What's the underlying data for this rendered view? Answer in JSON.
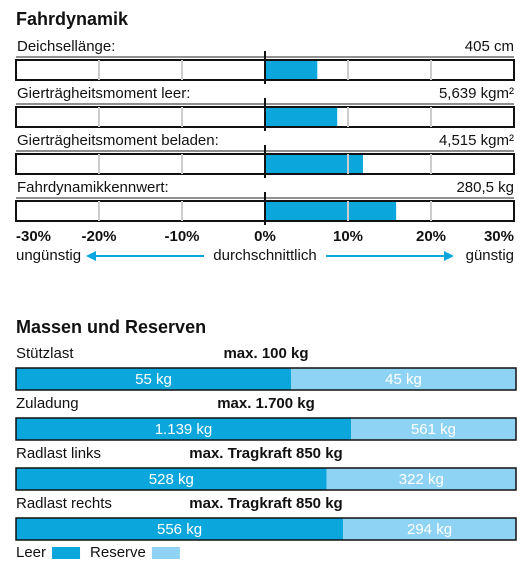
{
  "chart_data": [
    {
      "type": "bar",
      "orientation": "horizontal",
      "title": "Fahrdynamik",
      "categories": [
        "Deichsellänge:",
        "Gierträgheitsmoment leer:",
        "Gierträgheitsmoment beladen:",
        "Fahrdynamikkennwert:"
      ],
      "measurements": [
        "405 cm",
        "5,639 kgm²",
        "4,515 kgm²",
        "280,5 kg"
      ],
      "values": [
        6.3,
        8.7,
        11.8,
        15.8
      ],
      "color": "#0aa6dc",
      "xlim": [
        -30,
        30
      ],
      "xticks": [
        {
          "value": -30,
          "label": "-30%"
        },
        {
          "value": -20,
          "label": "-20%"
        },
        {
          "value": -10,
          "label": "-10%"
        },
        {
          "value": 0,
          "label": "0%"
        },
        {
          "value": 10,
          "label": "10%"
        },
        {
          "value": 20,
          "label": "20%"
        },
        {
          "value": 30,
          "label": "30%"
        }
      ],
      "grid": true,
      "annotations": [
        "ungünstig",
        "durchschnittlich",
        "günstig"
      ]
    },
    {
      "type": "stacked_bar",
      "orientation": "horizontal",
      "title": "Massen und Reserven",
      "categories": [
        "Stützlast",
        "Zuladung",
        "Radlast links",
        "Radlast rechts"
      ],
      "limits": [
        "max. 100 kg",
        "max. 1.700 kg",
        "max. Tragkraft 850 kg",
        "max. Tragkraft 850 kg"
      ],
      "series": [
        {
          "name": "Leer",
          "color": "#0aa6dc",
          "values": [
            55,
            1139,
            528,
            556
          ],
          "value_labels": [
            "55 kg",
            "1.139 kg",
            "528 kg",
            "556 kg"
          ]
        },
        {
          "name": "Reserve",
          "color": "#8fd3f4",
          "values": [
            45,
            561,
            322,
            294
          ],
          "value_labels": [
            "45 kg",
            "561 kg",
            "322 kg",
            "294 kg"
          ]
        }
      ]
    }
  ]
}
